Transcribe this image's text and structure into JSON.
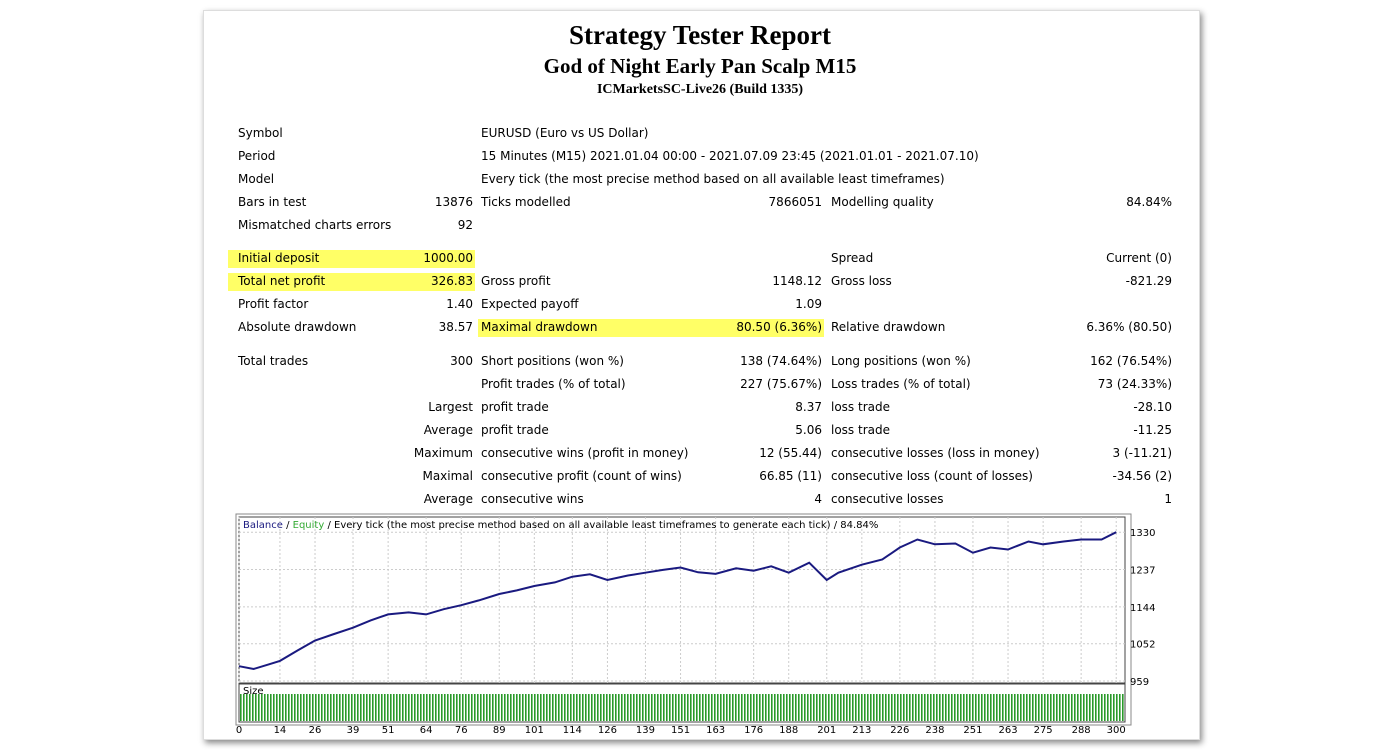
{
  "header": {
    "title": "Strategy Tester Report",
    "subtitle": "God of Night Early Pan Scalp M15",
    "server": "ICMarketsSC-Live26 (Build 1335)"
  },
  "table": {
    "rows": [
      [
        "Symbol",
        null,
        "EURUSD (Euro vs US Dollar)",
        null,
        null,
        null
      ],
      [
        "Period",
        null,
        "15 Minutes (M15) 2021.01.04 00:00 - 2021.07.09 23:45 (2021.01.01 - 2021.07.10)",
        null,
        null,
        null
      ],
      [
        "Model",
        null,
        "Every tick (the most precise method based on all available least timeframes)",
        null,
        null,
        null
      ],
      [
        "Bars in test",
        "13876",
        "Ticks modelled",
        "7866051",
        "Modelling quality",
        "84.84%"
      ],
      [
        "Mismatched charts errors",
        "92",
        null,
        null,
        null,
        null
      ],
      [
        "Initial deposit",
        "1000.00",
        null,
        null,
        "Spread",
        "Current (0)"
      ],
      [
        "Total net profit",
        "326.83",
        "Gross profit",
        "1148.12",
        "Gross loss",
        "-821.29"
      ],
      [
        "Profit factor",
        "1.40",
        "Expected payoff",
        "1.09",
        null,
        null
      ],
      [
        "Absolute drawdown",
        "38.57",
        "Maximal drawdown",
        "80.50 (6.36%)",
        "Relative drawdown",
        "6.36% (80.50)"
      ],
      [
        "Total trades",
        "300",
        "Short positions (won %)",
        "138 (74.64%)",
        "Long positions (won %)",
        "162 (76.54%)"
      ],
      [
        null,
        null,
        "Profit trades (% of total)",
        "227 (75.67%)",
        "Loss trades (% of total)",
        "73 (24.33%)"
      ],
      [
        null,
        "Largest",
        "profit trade",
        "8.37",
        "loss trade",
        "-28.10"
      ],
      [
        null,
        "Average",
        "profit trade",
        "5.06",
        "loss trade",
        "-11.25"
      ],
      [
        null,
        "Maximum",
        "consecutive wins (profit in money)",
        "12 (55.44)",
        "consecutive losses (loss in money)",
        "3 (-11.21)"
      ],
      [
        null,
        "Maximal",
        "consecutive profit (count of wins)",
        "66.85 (11)",
        "consecutive loss (count of losses)",
        "-34.56 (2)"
      ],
      [
        null,
        "Average",
        "consecutive wins",
        "4",
        "consecutive losses",
        "1"
      ]
    ]
  },
  "chart_data": {
    "type": "line",
    "separator": "/",
    "caption": "Every tick (the most precise method based on all available least timeframes to generate each tick)",
    "quality": "84.84%",
    "size_label": "Size",
    "series": [
      {
        "name": "Balance",
        "color": "#1a1a80",
        "x": [
          0,
          5,
          10,
          14,
          20,
          26,
          32,
          39,
          45,
          51,
          58,
          64,
          70,
          76,
          82,
          89,
          95,
          101,
          108,
          114,
          120,
          126,
          133,
          139,
          145,
          151,
          157,
          163,
          170,
          176,
          182,
          188,
          195,
          201,
          205,
          213,
          220,
          226,
          232,
          238,
          245,
          251,
          257,
          263,
          270,
          275,
          282,
          288,
          295,
          300
        ],
        "values": [
          996,
          989,
          1000,
          1009,
          1035,
          1060,
          1075,
          1092,
          1110,
          1125,
          1130,
          1125,
          1138,
          1148,
          1160,
          1176,
          1185,
          1196,
          1205,
          1219,
          1225,
          1211,
          1222,
          1229,
          1236,
          1242,
          1230,
          1226,
          1240,
          1234,
          1245,
          1229,
          1254,
          1211,
          1229,
          1249,
          1262,
          1292,
          1312,
          1300,
          1302,
          1279,
          1292,
          1287,
          1307,
          1300,
          1307,
          1312,
          1312,
          1330
        ]
      },
      {
        "name": "Equity",
        "color": "#33aa33"
      }
    ],
    "xlim": [
      0,
      303
    ],
    "xticks": [
      0,
      14,
      26,
      39,
      51,
      64,
      76,
      89,
      101,
      114,
      126,
      139,
      151,
      163,
      176,
      188,
      201,
      213,
      226,
      238,
      251,
      263,
      275,
      288,
      300
    ],
    "ylim": [
      954,
      1368
    ],
    "yticks": [
      959,
      1052,
      1144,
      1237,
      1330
    ],
    "grid": true
  }
}
